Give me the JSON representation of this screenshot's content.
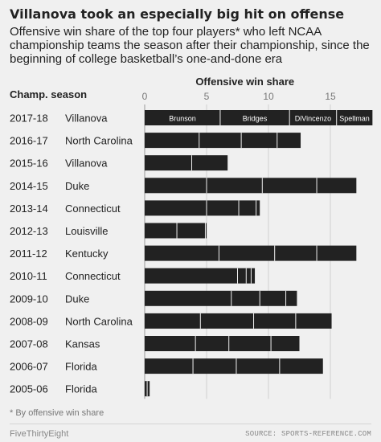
{
  "title": "Villanova took an especially big hit on offense",
  "subtitle": "Offensive win share of the top four players* who left NCAA championship teams the season after their championship, since the beginning of college basketball’s one-and-done era",
  "footnote": "* By offensive win share",
  "brand": "FiveThirtyEight",
  "source": "SOURCE: SPORTS-REFERENCE.COM",
  "colors": {
    "bar": "#222222",
    "divider": "#f0f0f0",
    "background": "#f0f0f0",
    "axis": "#999999",
    "grid": "#d0d0d0"
  },
  "chart_data": {
    "type": "bar",
    "orientation": "horizontal",
    "stacked": true,
    "title": "Offensive win share",
    "row_header": "Champ. season",
    "xlim": [
      0,
      18
    ],
    "x_ticks": [
      0,
      5,
      10,
      15
    ],
    "grid": true,
    "categories": [
      {
        "season": "2017-18",
        "team": "Villanova"
      },
      {
        "season": "2016-17",
        "team": "North Carolina"
      },
      {
        "season": "2015-16",
        "team": "Villanova"
      },
      {
        "season": "2014-15",
        "team": "Duke"
      },
      {
        "season": "2013-14",
        "team": "Connecticut"
      },
      {
        "season": "2012-13",
        "team": "Louisville"
      },
      {
        "season": "2011-12",
        "team": "Kentucky"
      },
      {
        "season": "2010-11",
        "team": "Connecticut"
      },
      {
        "season": "2009-10",
        "team": "Duke"
      },
      {
        "season": "2008-09",
        "team": "North Carolina"
      },
      {
        "season": "2007-08",
        "team": "Kansas"
      },
      {
        "season": "2006-07",
        "team": "Florida"
      },
      {
        "season": "2005-06",
        "team": "Florida"
      }
    ],
    "segments": [
      [
        6.1,
        5.6,
        3.8,
        2.9
      ],
      [
        4.4,
        3.4,
        2.9,
        1.9
      ],
      [
        3.8,
        2.9
      ],
      [
        5.0,
        4.5,
        4.4,
        3.2
      ],
      [
        5.0,
        2.6,
        1.4,
        0.3
      ],
      [
        2.6,
        2.3,
        0.1
      ],
      [
        6.0,
        4.5,
        3.4,
        3.2
      ],
      [
        7.5,
        0.7,
        0.4,
        0.3
      ],
      [
        7.0,
        2.3,
        2.1,
        0.9
      ],
      [
        4.5,
        4.3,
        3.4,
        2.9
      ],
      [
        4.1,
        2.7,
        3.4,
        2.3
      ],
      [
        3.9,
        3.5,
        3.5,
        3.5
      ],
      [
        0.2,
        0.2
      ]
    ],
    "segment_labels": [
      [
        "Brunson",
        "Bridges",
        "DiVincenzo",
        "Spellman"
      ],
      [],
      [],
      [],
      [],
      [],
      [],
      [],
      [],
      [],
      [],
      [],
      []
    ]
  }
}
